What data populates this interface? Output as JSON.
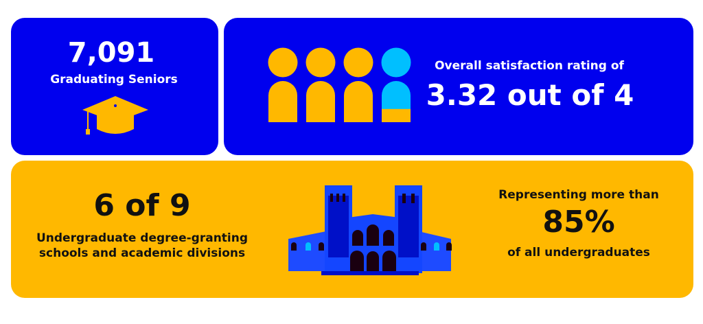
{
  "seniors": {
    "count": "7,091",
    "label": "Graduating Seniors",
    "icon": "graduation-cap-icon"
  },
  "satisfaction": {
    "label": "Overall satisfaction rating of",
    "value": "3.32 out of 4",
    "rating": 3.32,
    "max": 4,
    "icon": "people-icon"
  },
  "schools": {
    "value": "6 of 9",
    "line1": "Undergraduate degree-granting",
    "line2": "schools and academic divisions",
    "icon": "building-icon"
  },
  "representation": {
    "label": "Representing more than",
    "value": "85%",
    "suffix": "of all undergraduates"
  },
  "colors": {
    "blue": "#0000EE",
    "gold": "#FFB800",
    "cyan": "#00BFFF"
  }
}
